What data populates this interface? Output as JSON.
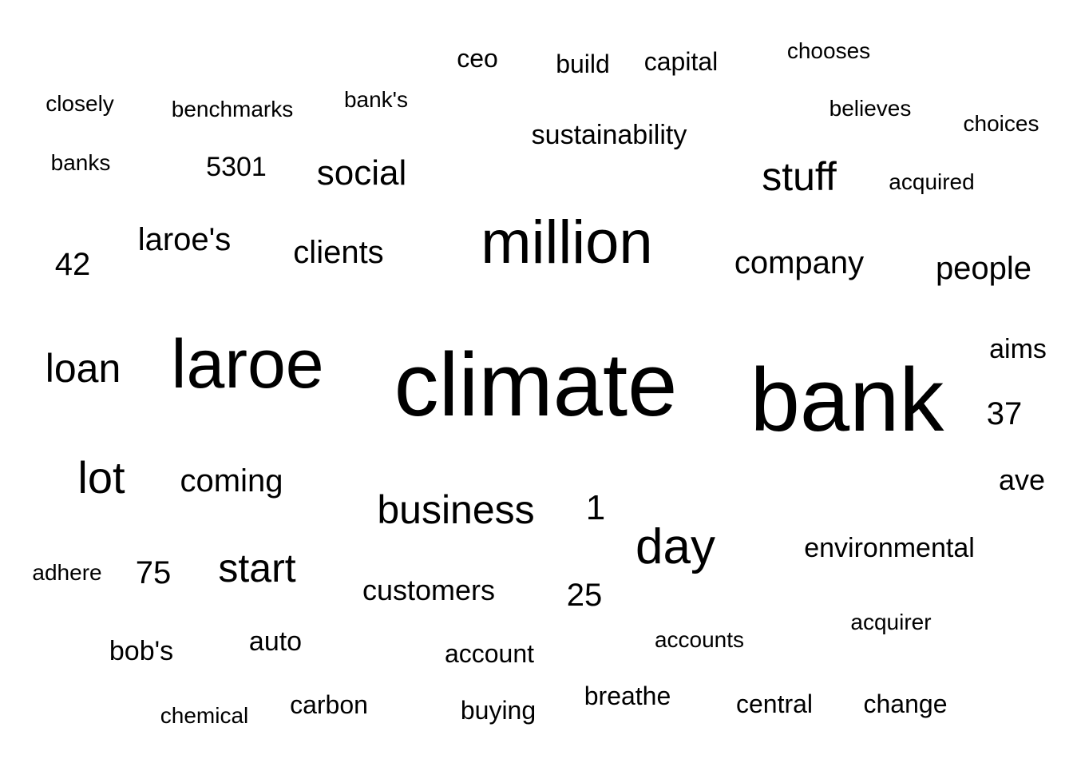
{
  "background_color": "#ffffff",
  "text_color": "#000000",
  "words": {
    "ceo": "ceo",
    "build": "build",
    "capital": "capital",
    "chooses": "chooses",
    "closely": "closely",
    "benchmarks": "benchmarks",
    "banks_possessive": "bank's",
    "believes": "believes",
    "choices": "choices",
    "sustainability": "sustainability",
    "banks": "banks",
    "num_5301": "5301",
    "social": "social",
    "stuff": "stuff",
    "acquired": "acquired",
    "laroes": "laroe's",
    "million": "million",
    "num_42": "42",
    "clients": "clients",
    "company": "company",
    "people": "people",
    "aims": "aims",
    "loan": "loan",
    "laroe": "laroe",
    "climate": "climate",
    "bank": "bank",
    "num_37": "37",
    "lot": "lot",
    "coming": "coming",
    "ave": "ave",
    "business": "business",
    "num_1": "1",
    "day": "day",
    "environmental": "environmental",
    "adhere": "adhere",
    "num_75": "75",
    "start": "start",
    "customers": "customers",
    "num_25": "25",
    "acquirer": "acquirer",
    "bobs": "bob's",
    "auto": "auto",
    "account": "account",
    "accounts": "accounts",
    "breathe": "breathe",
    "chemical": "chemical",
    "carbon": "carbon",
    "buying": "buying",
    "central": "central",
    "change": "change"
  }
}
